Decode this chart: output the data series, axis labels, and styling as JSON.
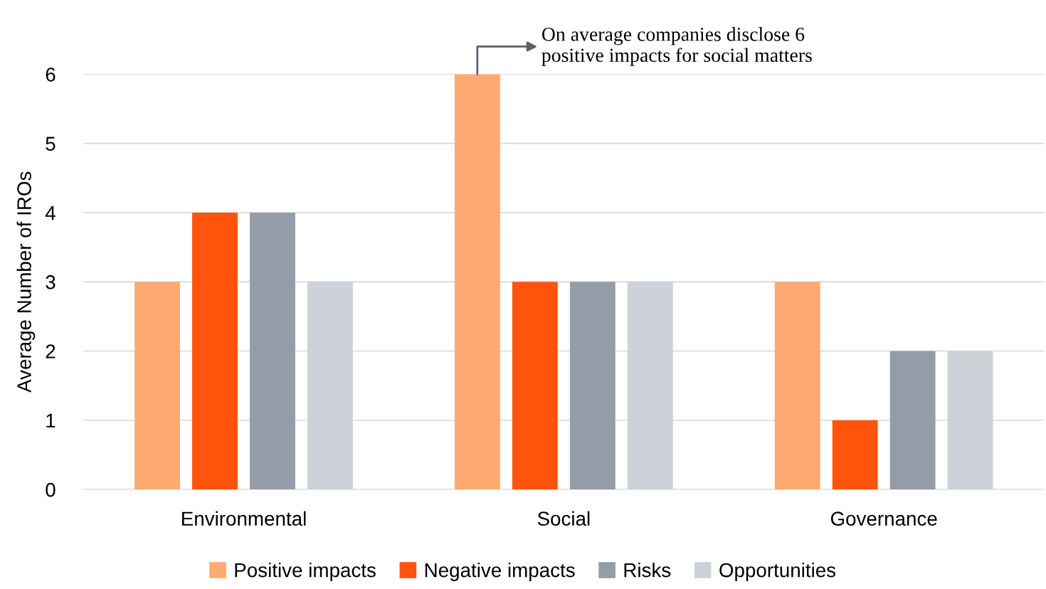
{
  "chart_data": {
    "type": "bar",
    "ylabel": "Average Number of IROs",
    "categories": [
      "Environmental",
      "Social",
      "Governance"
    ],
    "series": [
      {
        "name": "Positive impacts",
        "color": "#ffaa72",
        "values": [
          3,
          6,
          3
        ]
      },
      {
        "name": "Negative impacts",
        "color": "#fe540b",
        "values": [
          4,
          3,
          1
        ]
      },
      {
        "name": "Risks",
        "color": "#929da8",
        "values": [
          4,
          3,
          2
        ]
      },
      {
        "name": "Opportunities",
        "color": "#cdd1d8",
        "values": [
          3,
          3,
          2
        ]
      }
    ],
    "ylim": [
      0,
      6
    ],
    "yticks": [
      0,
      1,
      2,
      3,
      4,
      5,
      6
    ],
    "grid": "y",
    "legend": "bottom",
    "annotations": [
      "On average companies disclose 6\npositive impacts for social matters"
    ]
  }
}
